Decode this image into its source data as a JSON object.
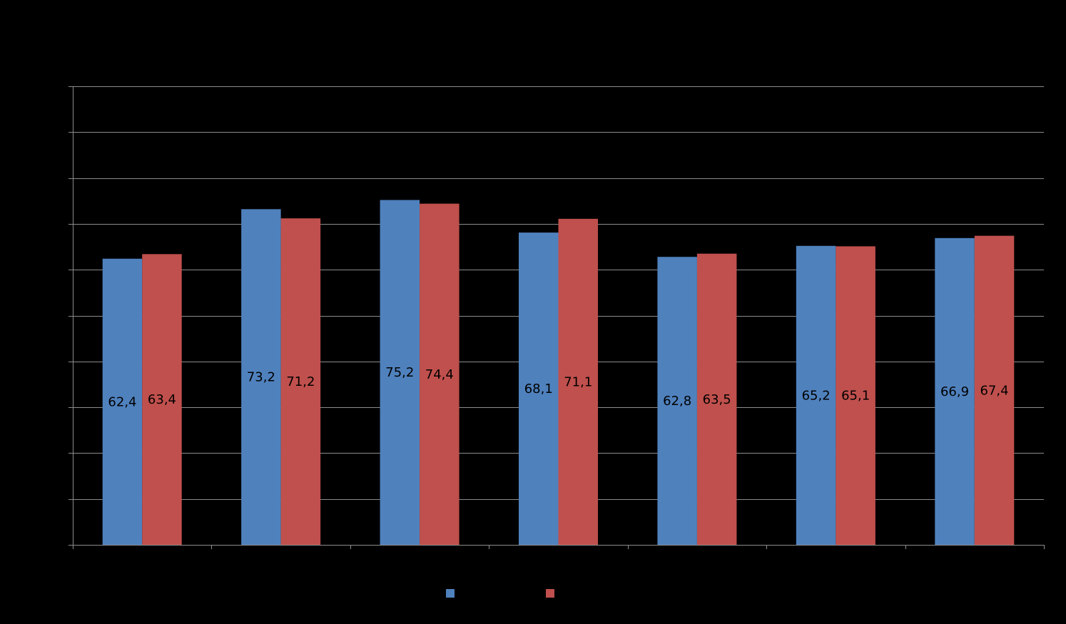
{
  "chart_data": {
    "type": "bar",
    "categories": [
      "",
      "",
      "",
      "",
      "",
      "",
      ""
    ],
    "series": [
      {
        "color": "#4f81bd",
        "values": [
          62.4,
          73.2,
          75.2,
          68.1,
          62.8,
          65.2,
          66.9
        ],
        "labels": [
          "62,4",
          "73,2",
          "75,2",
          "68,1",
          "62,8",
          "65,2",
          "66,9"
        ]
      },
      {
        "color": "#c0504d",
        "values": [
          63.4,
          71.2,
          74.4,
          71.1,
          63.5,
          65.1,
          67.4
        ],
        "labels": [
          "63,4",
          "71,2",
          "74,4",
          "71,1",
          "63,5",
          "65,1",
          "67,4"
        ]
      }
    ],
    "ylim": [
      0,
      100
    ],
    "grid": true,
    "legend_position": "bottom",
    "background": "#000000"
  }
}
